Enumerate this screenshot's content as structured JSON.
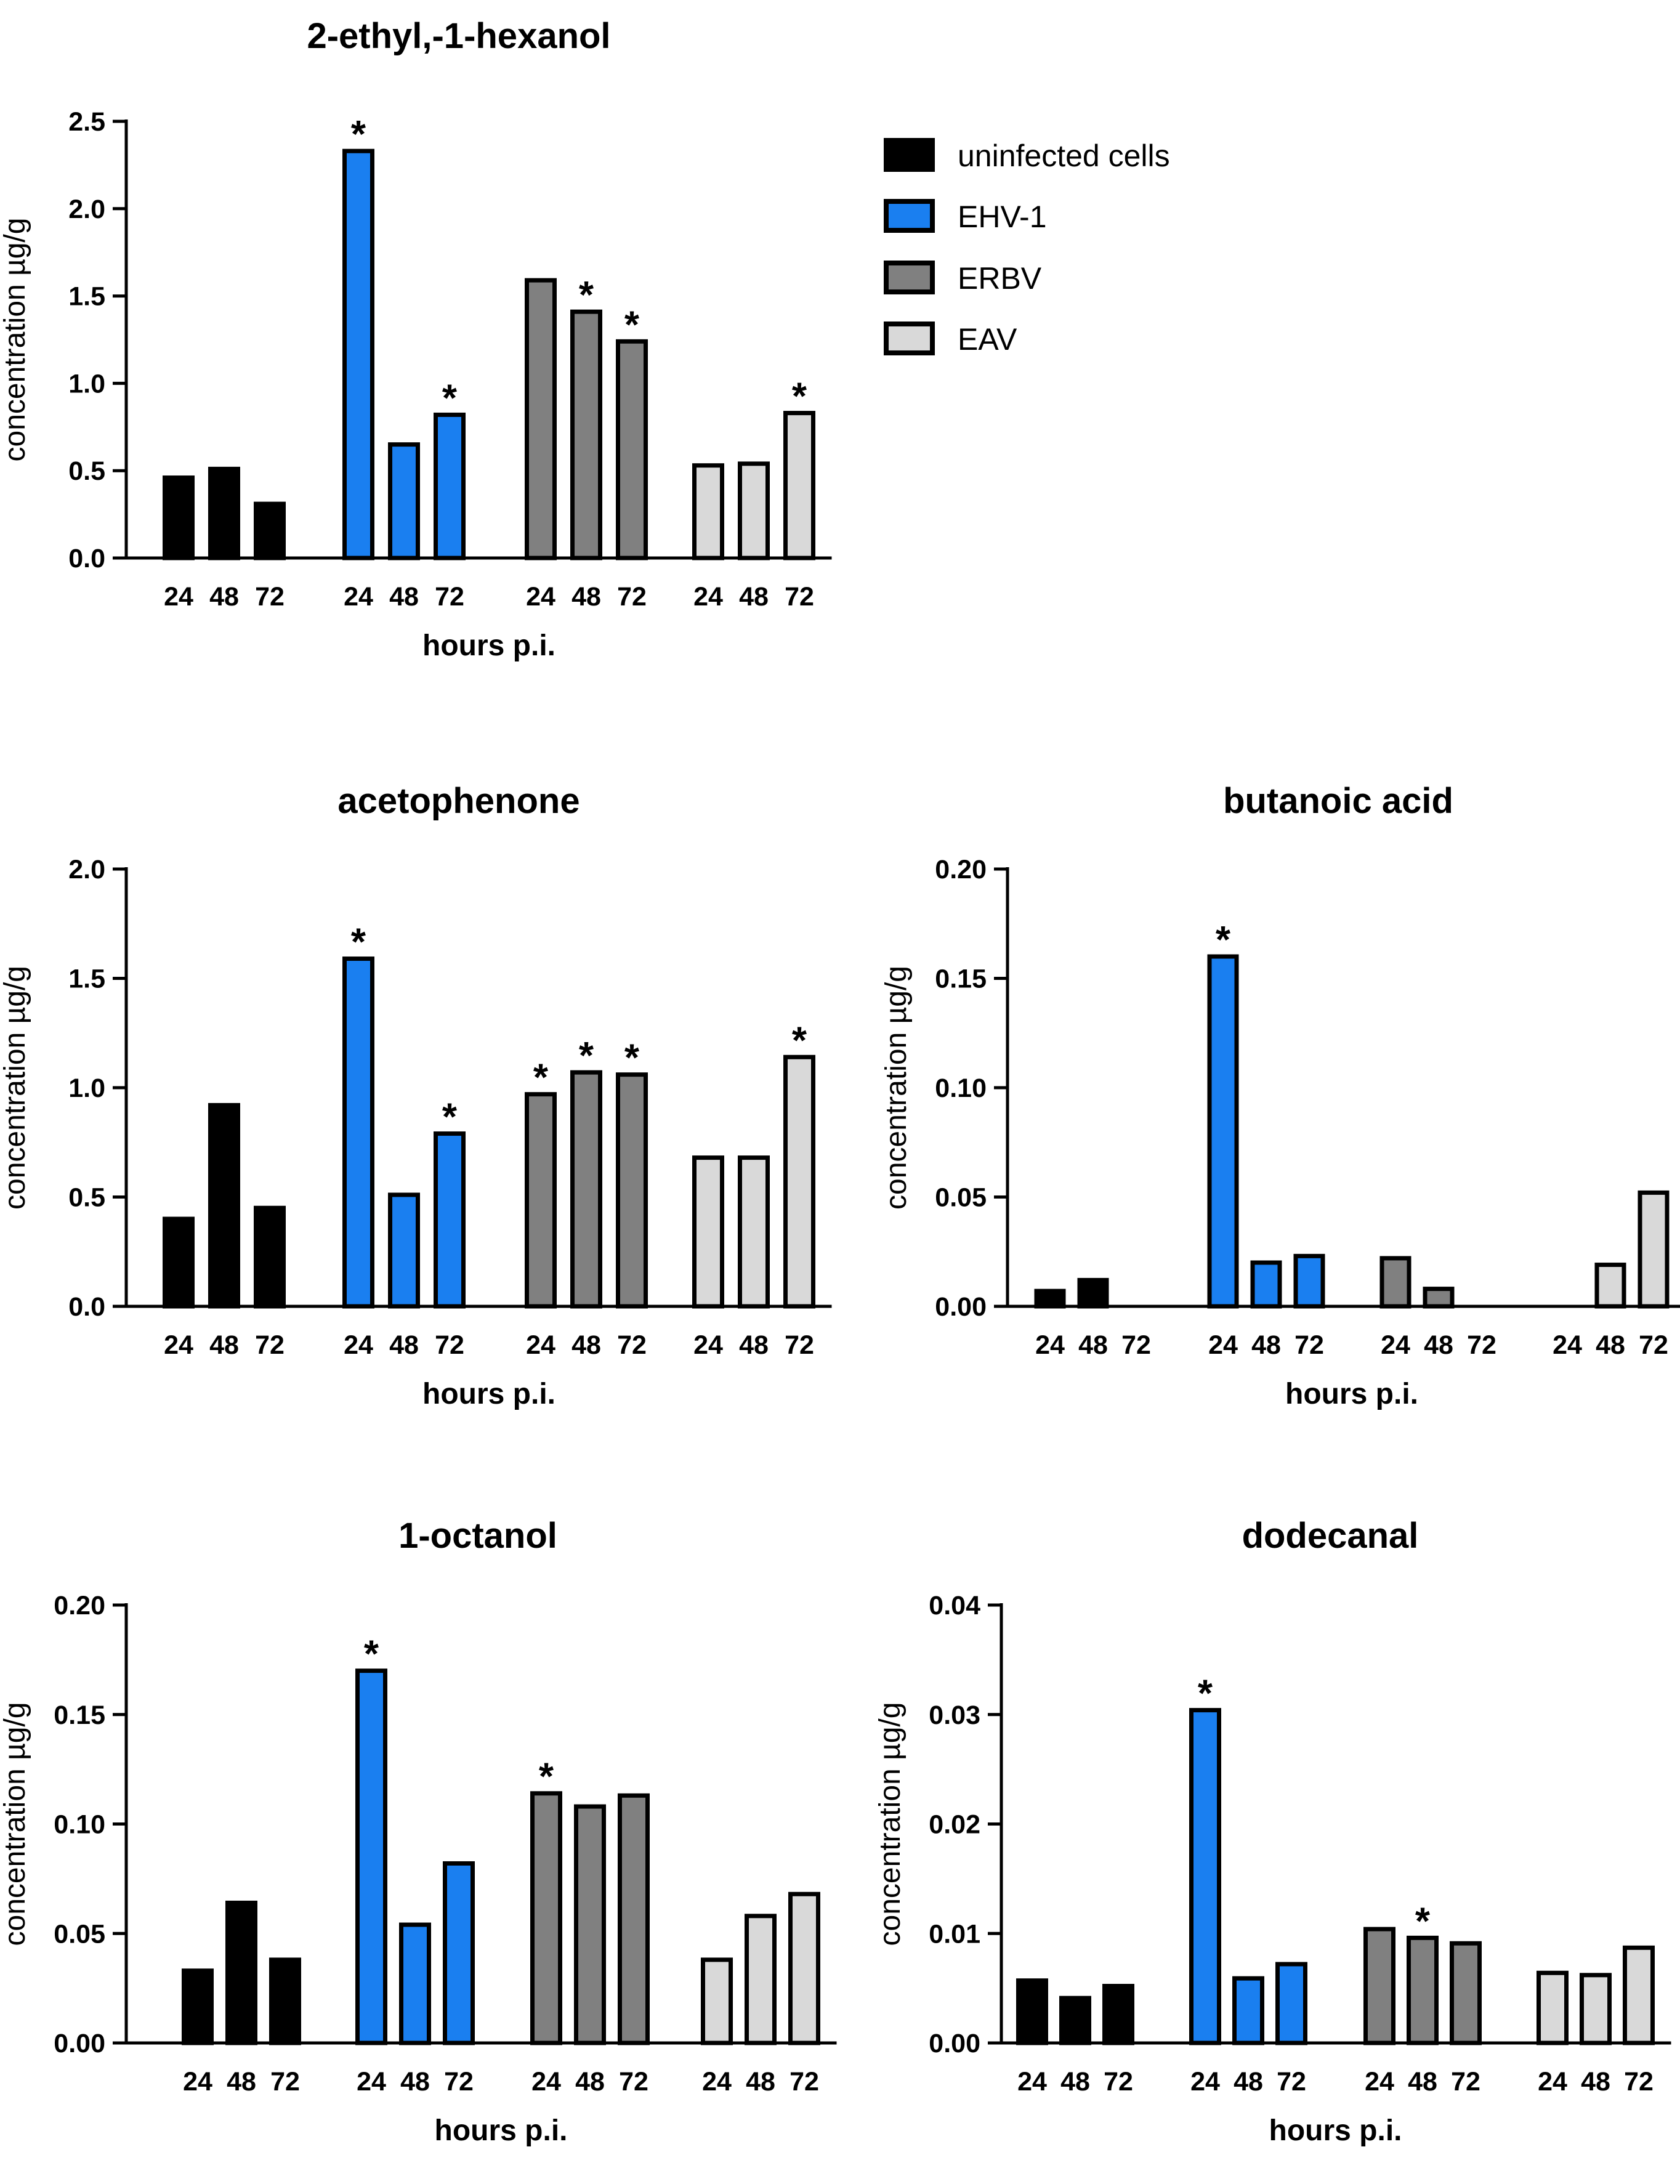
{
  "legend": [
    {
      "label": "uninfected cells",
      "color": "#000000"
    },
    {
      "label": "EHV-1",
      "color": "#1a7ff0"
    },
    {
      "label": "ERBV",
      "color": "#808080"
    },
    {
      "label": "EAV",
      "color": "#d9d9d9"
    }
  ],
  "chart_data": [
    {
      "type": "bar",
      "title": "2-ethyl,-1-hexanol",
      "xlabel": "hours p.i.",
      "ylabel": "concentration µg/g",
      "ylim": [
        0,
        2.5
      ],
      "yticks": [
        "0.0",
        "0.5",
        "1.0",
        "1.5",
        "2.0",
        "2.5"
      ],
      "categories": [
        "24",
        "48",
        "72"
      ],
      "series": [
        {
          "name": "uninfected cells",
          "values": [
            0.46,
            0.51,
            0.31
          ],
          "significant": [
            false,
            false,
            false
          ]
        },
        {
          "name": "EHV-1",
          "values": [
            2.33,
            0.65,
            0.82
          ],
          "significant": [
            true,
            false,
            true
          ]
        },
        {
          "name": "ERBV",
          "values": [
            1.59,
            1.41,
            1.24
          ],
          "significant": [
            false,
            true,
            true
          ]
        },
        {
          "name": "EAV",
          "values": [
            0.53,
            0.54,
            0.83
          ],
          "significant": [
            false,
            false,
            true
          ]
        }
      ]
    },
    {
      "type": "bar",
      "title": "acetophenone",
      "xlabel": "hours p.i.",
      "ylabel": "concentration µg/g",
      "ylim": [
        0,
        2.0
      ],
      "yticks": [
        "0.0",
        "0.5",
        "1.0",
        "1.5",
        "2.0"
      ],
      "categories": [
        "24",
        "48",
        "72"
      ],
      "series": [
        {
          "name": "uninfected cells",
          "values": [
            0.4,
            0.92,
            0.45
          ],
          "significant": [
            false,
            false,
            false
          ]
        },
        {
          "name": "EHV-1",
          "values": [
            1.59,
            0.51,
            0.79
          ],
          "significant": [
            true,
            false,
            true
          ]
        },
        {
          "name": "ERBV",
          "values": [
            0.97,
            1.07,
            1.06
          ],
          "significant": [
            true,
            true,
            true
          ]
        },
        {
          "name": "EAV",
          "values": [
            0.68,
            0.68,
            1.14
          ],
          "significant": [
            false,
            false,
            true
          ]
        }
      ]
    },
    {
      "type": "bar",
      "title": "butanoic acid",
      "xlabel": "hours p.i.",
      "ylabel": "concentration µg/g",
      "ylim": [
        0,
        0.2
      ],
      "yticks": [
        "0.00",
        "0.05",
        "0.10",
        "0.15",
        "0.20"
      ],
      "categories": [
        "24",
        "48",
        "72"
      ],
      "series": [
        {
          "name": "uninfected cells",
          "values": [
            0.007,
            0.012,
            0.0
          ],
          "significant": [
            false,
            false,
            false
          ]
        },
        {
          "name": "EHV-1",
          "values": [
            0.16,
            0.02,
            0.023
          ],
          "significant": [
            true,
            false,
            false
          ]
        },
        {
          "name": "ERBV",
          "values": [
            0.022,
            0.008,
            0.0
          ],
          "significant": [
            false,
            false,
            false
          ]
        },
        {
          "name": "EAV",
          "values": [
            0.0,
            0.019,
            0.052
          ],
          "significant": [
            false,
            false,
            false
          ]
        }
      ]
    },
    {
      "type": "bar",
      "title": "1-octanol",
      "xlabel": "hours p.i.",
      "ylabel": "concentration µg/g",
      "ylim": [
        0,
        0.2
      ],
      "yticks": [
        "0.00",
        "0.05",
        "0.10",
        "0.15",
        "0.20"
      ],
      "categories": [
        "24",
        "48",
        "72"
      ],
      "series": [
        {
          "name": "uninfected cells",
          "values": [
            0.033,
            0.064,
            0.038
          ],
          "significant": [
            false,
            false,
            false
          ]
        },
        {
          "name": "EHV-1",
          "values": [
            0.17,
            0.054,
            0.082
          ],
          "significant": [
            true,
            false,
            false
          ]
        },
        {
          "name": "ERBV",
          "values": [
            0.114,
            0.108,
            0.113
          ],
          "significant": [
            true,
            false,
            false
          ]
        },
        {
          "name": "EAV",
          "values": [
            0.038,
            0.058,
            0.068
          ],
          "significant": [
            false,
            false,
            false
          ]
        }
      ]
    },
    {
      "type": "bar",
      "title": "dodecanal",
      "xlabel": "hours p.i.",
      "ylabel": "concentration µg/g",
      "ylim": [
        0,
        0.04
      ],
      "yticks": [
        "0.00",
        "0.01",
        "0.02",
        "0.03",
        "0.04"
      ],
      "categories": [
        "24",
        "48",
        "72"
      ],
      "series": [
        {
          "name": "uninfected cells",
          "values": [
            0.0057,
            0.0041,
            0.0052
          ],
          "significant": [
            false,
            false,
            false
          ]
        },
        {
          "name": "EHV-1",
          "values": [
            0.0304,
            0.0059,
            0.0072
          ],
          "significant": [
            true,
            false,
            false
          ]
        },
        {
          "name": "ERBV",
          "values": [
            0.0104,
            0.0096,
            0.0091
          ],
          "significant": [
            false,
            true,
            false
          ]
        },
        {
          "name": "EAV",
          "values": [
            0.0064,
            0.0062,
            0.0087
          ],
          "significant": [
            false,
            false,
            false
          ]
        }
      ]
    }
  ]
}
